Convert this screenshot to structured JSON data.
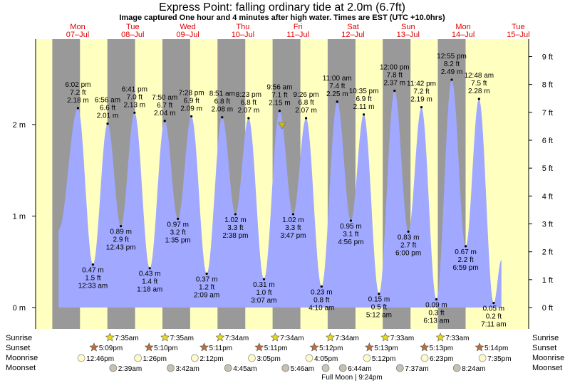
{
  "title": "Express Point: falling  ordinary tide at 2.0m (6.7ft)",
  "subtitle": "Image captured One hour and 4 minutes after high water. Times are EST (UTC +10.0hrs)",
  "colors": {
    "day": "#ffffc0",
    "night": "#999999",
    "water": "#a0a8ff",
    "day_label": "#dd0000",
    "marker": "#ccbb00"
  },
  "days": [
    {
      "name": "Mon",
      "date": "07–Jul"
    },
    {
      "name": "Tue",
      "date": "08–Jul"
    },
    {
      "name": "Wed",
      "date": "09–Jul"
    },
    {
      "name": "Thu",
      "date": "10–Jul"
    },
    {
      "name": "Fri",
      "date": "11–Jul"
    },
    {
      "name": "Sat",
      "date": "12–Jul"
    },
    {
      "name": "Sun",
      "date": "13–Jul"
    },
    {
      "name": "Mon",
      "date": "14–Jul"
    },
    {
      "name": "Tue",
      "date": "15–Jul"
    }
  ],
  "chart_data": {
    "type": "area",
    "x_unit": "days since 07-Jul 00:00 (EST)",
    "ylim_m": [
      -0.3,
      2.95
    ],
    "left_ticks": [
      {
        "v": 0,
        "label": "0 m"
      },
      {
        "v": 1,
        "label": "1 m"
      },
      {
        "v": 2,
        "label": "2 m"
      }
    ],
    "right_ticks": [
      {
        "v": 0,
        "label": "0 ft"
      },
      {
        "v": 1,
        "label": "1 ft"
      },
      {
        "v": 2,
        "label": "2 ft"
      },
      {
        "v": 3,
        "label": "3 ft"
      },
      {
        "v": 4,
        "label": "4 ft"
      },
      {
        "v": 5,
        "label": "5 ft"
      },
      {
        "v": 6,
        "label": "6 ft"
      },
      {
        "v": 7,
        "label": "7 ft"
      },
      {
        "v": 8,
        "label": "8 ft"
      },
      {
        "v": 9,
        "label": "9 ft"
      }
    ],
    "start": {
      "t": -0.1,
      "h": 0.85
    },
    "end": {
      "t": 7.94,
      "h": 0.52
    },
    "tides": [
      {
        "t": 0.251,
        "h": 2.18,
        "type": "high",
        "time": "6:02 pm",
        "m": "2.18 m",
        "ft": "7.2 ft"
      },
      {
        "t": 0.523,
        "h": 0.47,
        "type": "low",
        "time": "12:33 am",
        "m": "0.47 m",
        "ft": "1.5 ft"
      },
      {
        "t": 0.789,
        "h": 2.01,
        "type": "high",
        "time": "6:56 am",
        "m": "2.01 m",
        "ft": "6.6 ft"
      },
      {
        "t": 1.03,
        "h": 0.89,
        "type": "low",
        "time": "12:43 pm",
        "m": "0.89 m",
        "ft": "2.9 ft"
      },
      {
        "t": 1.279,
        "h": 2.13,
        "type": "high",
        "time": "6:41 pm",
        "m": "2.13 m",
        "ft": "7.0 ft"
      },
      {
        "t": 1.555,
        "h": 0.43,
        "type": "low",
        "time": "1:18 am",
        "m": "0.43 m",
        "ft": "1.4 ft"
      },
      {
        "t": 1.827,
        "h": 2.04,
        "type": "high",
        "time": "7:50 am",
        "m": "2.04 m",
        "ft": "6.7 ft"
      },
      {
        "t": 2.066,
        "h": 0.97,
        "type": "low",
        "time": "1:35 pm",
        "m": "0.97 m",
        "ft": "3.2 ft"
      },
      {
        "t": 2.311,
        "h": 2.09,
        "type": "high",
        "time": "7:28 pm",
        "m": "2.09 m",
        "ft": "6.9 ft"
      },
      {
        "t": 2.589,
        "h": 0.37,
        "type": "low",
        "time": "2:09 am",
        "m": "0.37 m",
        "ft": "1.2 ft"
      },
      {
        "t": 2.869,
        "h": 2.08,
        "type": "high",
        "time": "8:51 am",
        "m": "2.08 m",
        "ft": "6.8 ft"
      },
      {
        "t": 3.11,
        "h": 1.02,
        "type": "low",
        "time": "2:38 pm",
        "m": "1.02 m",
        "ft": "3.3 ft"
      },
      {
        "t": 3.349,
        "h": 2.07,
        "type": "high",
        "time": "8:23 pm",
        "m": "2.07 m",
        "ft": "6.8 ft"
      },
      {
        "t": 3.628,
        "h": 0.31,
        "type": "low",
        "time": "3:07 am",
        "m": "0.31 m",
        "ft": "1.0 ft"
      },
      {
        "t": 3.912,
        "h": 2.15,
        "type": "high",
        "time": "9:56 am",
        "m": "2.15 m",
        "ft": "7.1 ft"
      },
      {
        "t": 4.158,
        "h": 1.02,
        "type": "low",
        "time": "3:47 pm",
        "m": "1.02 m",
        "ft": "3.3 ft"
      },
      {
        "t": 4.393,
        "h": 2.07,
        "type": "high",
        "time": "9:26 pm",
        "m": "2.07 m",
        "ft": "6.8 ft"
      },
      {
        "t": 4.674,
        "h": 0.23,
        "type": "low",
        "time": "4:10 am",
        "m": "0.23 m",
        "ft": "0.8 ft"
      },
      {
        "t": 4.958,
        "h": 2.25,
        "type": "high",
        "time": "11:00 am",
        "m": "2.25 m",
        "ft": "7.4 ft"
      },
      {
        "t": 5.206,
        "h": 0.95,
        "type": "low",
        "time": "4:56 pm",
        "m": "0.95 m",
        "ft": "3.1 ft"
      },
      {
        "t": 5.441,
        "h": 2.11,
        "type": "high",
        "time": "10:35 pm",
        "m": "2.11 m",
        "ft": "6.9 ft"
      },
      {
        "t": 5.717,
        "h": 0.15,
        "type": "low",
        "time": "5:12 am",
        "m": "0.15 m",
        "ft": "0.5 ft"
      },
      {
        "t": 6.0,
        "h": 2.37,
        "type": "high",
        "time": "12:00 pm",
        "m": "2.37 m",
        "ft": "7.8 ft"
      },
      {
        "t": 6.25,
        "h": 0.83,
        "type": "low",
        "time": "6:00 pm",
        "m": "0.83 m",
        "ft": "2.7 ft"
      },
      {
        "t": 6.488,
        "h": 2.19,
        "type": "high",
        "time": "11:42 pm",
        "m": "2.19 m",
        "ft": "7.2 ft"
      },
      {
        "t": 6.759,
        "h": 0.09,
        "type": "low",
        "time": "6:13 am",
        "m": "0.09 m",
        "ft": "0.3 ft"
      },
      {
        "t": 7.038,
        "h": 2.49,
        "type": "high",
        "time": "12:55 pm",
        "m": "2.49 m",
        "ft": "8.2 ft"
      },
      {
        "t": 7.291,
        "h": 0.67,
        "type": "low",
        "time": "6:59 pm",
        "m": "0.67 m",
        "ft": "2.2 ft"
      },
      {
        "t": 7.533,
        "h": 2.28,
        "type": "high",
        "time": "12:48 am",
        "m": "2.28 m",
        "ft": "7.5 ft"
      },
      {
        "t": 7.799,
        "h": 0.05,
        "type": "low",
        "time": "7:11 am",
        "m": "0.05 m",
        "ft": "0.2 ft"
      }
    ],
    "current": {
      "t": 3.956,
      "h": 2.0
    },
    "night_band_edges_days": [
      [
        -0.215,
        0.288
      ],
      [
        0.785,
        1.288
      ],
      [
        1.785,
        2.288
      ],
      [
        2.785,
        3.289
      ],
      [
        3.785,
        4.29
      ],
      [
        4.785,
        5.29
      ],
      [
        5.785,
        6.29
      ],
      [
        6.785,
        7.29
      ]
    ],
    "sunrise": [
      "7:35am",
      "7:35am",
      "7:34am",
      "7:34am",
      "7:34am",
      "7:33am",
      "7:33am"
    ],
    "sunset": [
      "5:09pm",
      "5:10pm",
      "5:11pm",
      "5:11pm",
      "5:12pm",
      "5:13pm",
      "5:13pm",
      "5:14pm"
    ],
    "moonrise": [
      "12:46pm",
      "1:26pm",
      "2:12pm",
      "3:05pm",
      "4:05pm",
      "5:12pm",
      "6:23pm",
      "7:35pm"
    ],
    "moonset": [
      "2:39am",
      "3:42am",
      "4:45am",
      "5:46am",
      "6:44am",
      "7:37am",
      "8:24am"
    ],
    "moonrise_days": [
      0.532,
      1.56,
      2.592,
      3.628,
      4.67,
      5.717,
      6.766,
      7.816
    ],
    "moonset_days": [
      1.11,
      2.154,
      3.198,
      4.24,
      5.281,
      6.317,
      7.35
    ],
    "full_moon": "Full Moon | 9:24pm"
  },
  "legend_labels": {
    "sunrise": "Sunrise",
    "sunset": "Sunset",
    "moonrise": "Moonrise",
    "moonset": "Moonset"
  }
}
